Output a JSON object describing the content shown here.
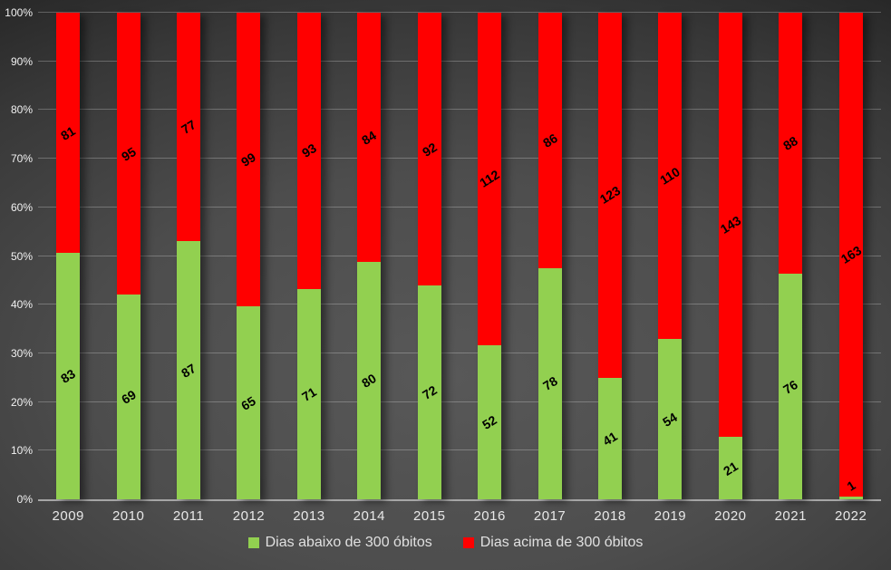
{
  "chart_data": {
    "type": "bar",
    "subtype": "stacked-100-percent-column",
    "title": "",
    "categories": [
      "2009",
      "2010",
      "2011",
      "2012",
      "2013",
      "2014",
      "2015",
      "2016",
      "2017",
      "2018",
      "2019",
      "2020",
      "2021",
      "2022"
    ],
    "series": [
      {
        "name": "Dias abaixo de 300 óbitos",
        "color": "#92D050",
        "values": [
          83,
          69,
          87,
          65,
          71,
          80,
          72,
          52,
          78,
          41,
          54,
          21,
          76,
          1
        ]
      },
      {
        "name": "Dias acima de 300 óbitos",
        "color": "#FF0000",
        "values": [
          81,
          95,
          77,
          99,
          93,
          84,
          92,
          112,
          86,
          123,
          110,
          143,
          88,
          163
        ]
      }
    ],
    "y_axis": {
      "ticks": [
        "0%",
        "10%",
        "20%",
        "30%",
        "40%",
        "50%",
        "60%",
        "70%",
        "80%",
        "90%",
        "100%"
      ],
      "min": 0,
      "max": 100
    },
    "grid": true,
    "legend_position": "bottom",
    "data_labels": "rotated, black, centered in each segment"
  },
  "legend": {
    "items": [
      {
        "label": "Dias abaixo de 300 óbitos",
        "color": "#92D050"
      },
      {
        "label": "Dias acima de 300 óbitos",
        "color": "#FF0000"
      }
    ]
  },
  "colors": {
    "background_center": "#585858",
    "background_edge": "#262626",
    "gridline": "rgba(255,255,255,0.25)",
    "axis_line": "#a6a6a6",
    "axis_text": "#f2f2f2",
    "category_text": "#e8e8e8",
    "legend_text": "#e0e0e0",
    "data_label_text": "#000000"
  }
}
